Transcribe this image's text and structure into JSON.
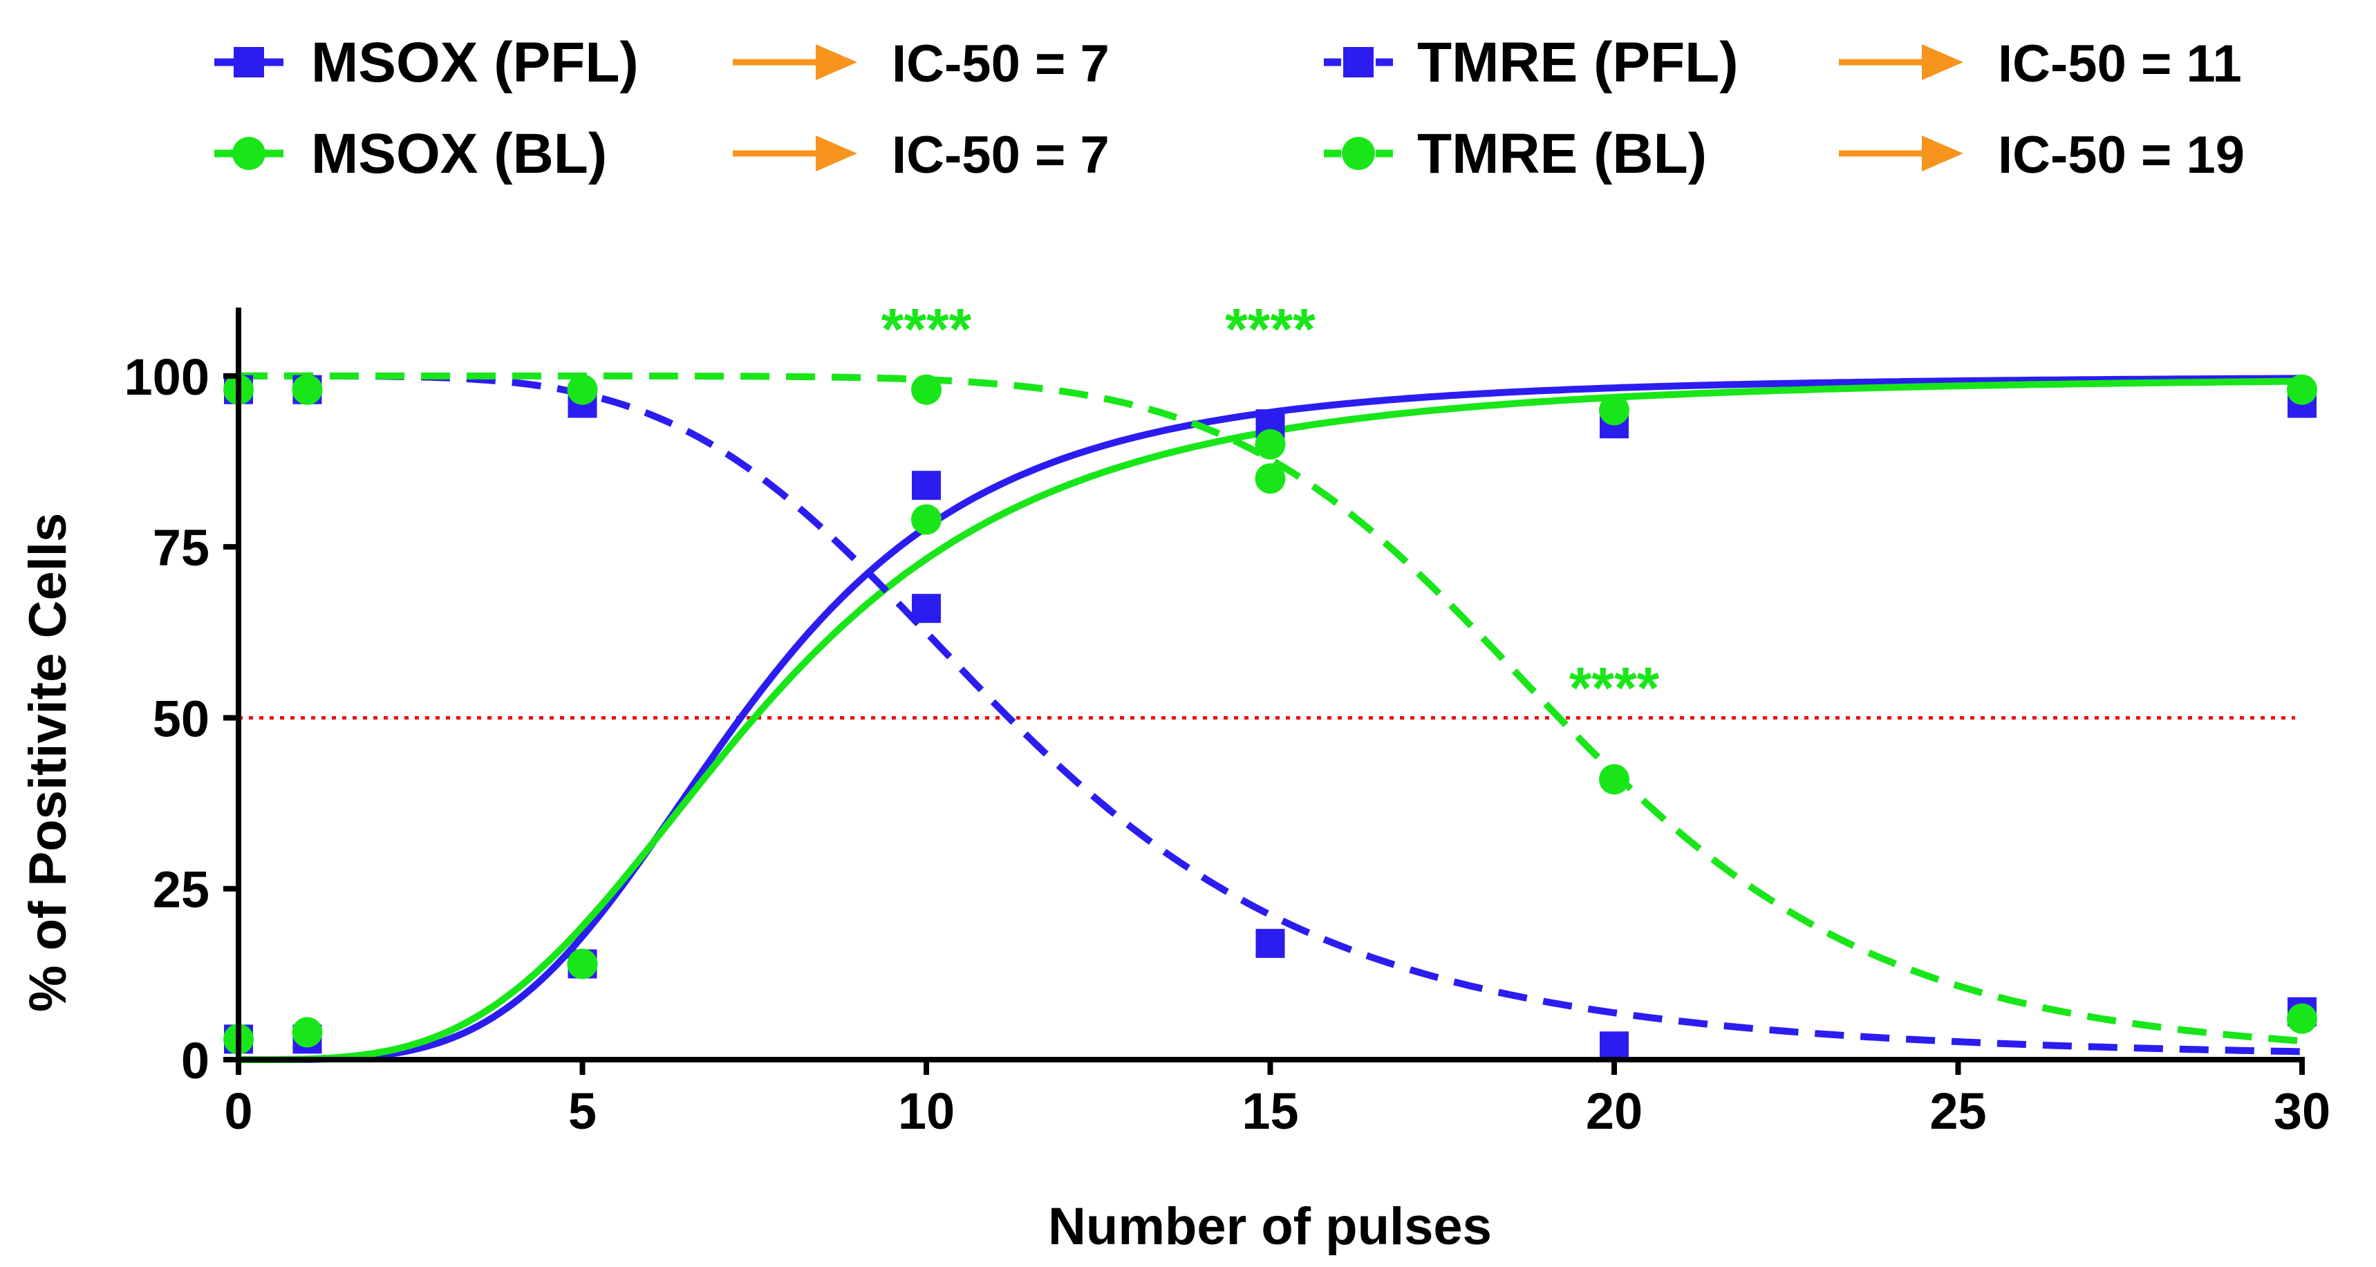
{
  "colors": {
    "pfl": "#2b1df0",
    "bl": "#19e619",
    "arrow": "#f7941d",
    "threshold": "#ee1111",
    "axis": "#000000",
    "stars": "#19e619"
  },
  "legend": {
    "entries": [
      {
        "label": "MSOX (PFL)",
        "marker": "square-marker",
        "line": "solid",
        "color": "pfl",
        "ic50": "IC-50 = 7"
      },
      {
        "label": "MSOX (BL)",
        "marker": "circle-marker",
        "line": "solid",
        "color": "bl",
        "ic50": "IC-50 = 7"
      },
      {
        "label": "TMRE (PFL)",
        "marker": "square-marker",
        "line": "dashed",
        "color": "pfl",
        "ic50": "IC-50 = 11"
      },
      {
        "label": "TMRE (BL)",
        "marker": "circle-marker",
        "line": "dashed",
        "color": "bl",
        "ic50": "IC-50 = 19"
      }
    ]
  },
  "chart_data": {
    "type": "scatter",
    "title": "",
    "xlabel": "Number of pulses",
    "ylabel": "% of Positivite Cells",
    "xlim": [
      0,
      30
    ],
    "ylim": [
      0,
      110
    ],
    "xticks": [
      0,
      5,
      10,
      15,
      20,
      25,
      30
    ],
    "yticks": [
      0,
      25,
      50,
      75,
      100
    ],
    "grid": false,
    "threshold_y": 50,
    "x": [
      0,
      1,
      5,
      10,
      15,
      20,
      30
    ],
    "series": [
      {
        "name": "MSOX (PFL)",
        "marker": "square",
        "line": "solid",
        "color": "pfl",
        "values": [
          3,
          3,
          14,
          84,
          93,
          93,
          96
        ],
        "fit": {
          "bottom": 0,
          "top": 100,
          "ic50": 7.3,
          "hill": 4.0,
          "rising": true
        }
      },
      {
        "name": "MSOX (BL)",
        "marker": "circle",
        "line": "solid",
        "color": "bl",
        "values": [
          3,
          4,
          14,
          79,
          85,
          95,
          98
        ],
        "fit": {
          "bottom": 0,
          "top": 100,
          "ic50": 7.5,
          "hill": 3.5,
          "rising": true
        }
      },
      {
        "name": "TMRE (PFL)",
        "marker": "square",
        "line": "dashed",
        "color": "pfl",
        "values": [
          98,
          98,
          96,
          66,
          17,
          2,
          7
        ],
        "fit": {
          "bottom": 0,
          "top": 100,
          "ic50": 11.2,
          "hill": 4.5,
          "rising": false
        }
      },
      {
        "name": "TMRE (BL)",
        "marker": "circle",
        "line": "dashed",
        "color": "bl",
        "values": [
          98,
          98,
          98,
          98,
          90,
          41,
          6
        ],
        "fit": {
          "bottom": 0,
          "top": 100,
          "ic50": 19.2,
          "hill": 8.0,
          "rising": false
        }
      }
    ],
    "annotations": [
      {
        "text": "****",
        "x": 10,
        "y": 108
      },
      {
        "text": "****",
        "x": 15,
        "y": 108
      },
      {
        "text": "****",
        "x": 20,
        "y": 55.5
      }
    ]
  }
}
